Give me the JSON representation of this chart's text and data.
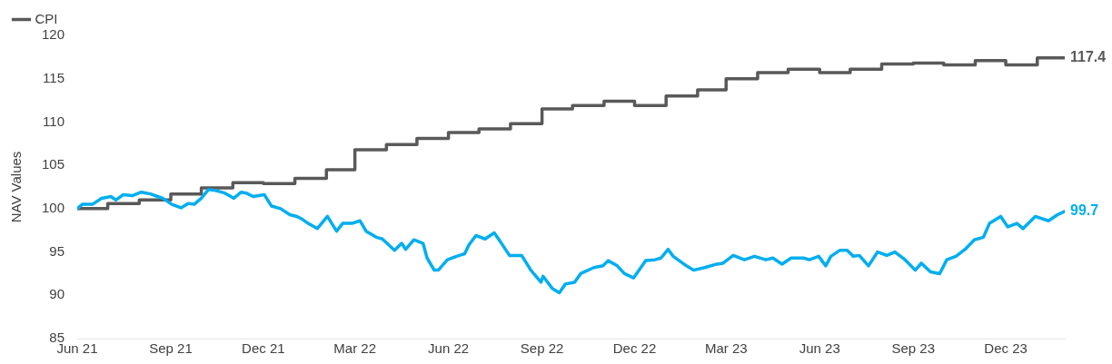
{
  "chart_data": {
    "type": "line",
    "ylabel": "NAV Values",
    "xlim": [
      "2021-06-01",
      "2024-01-28"
    ],
    "xticks": [
      {
        "value": "2021-06-01",
        "label": "Jun 21"
      },
      {
        "value": "2021-09-01",
        "label": "Sep 21"
      },
      {
        "value": "2021-12-01",
        "label": "Dec 21"
      },
      {
        "value": "2022-03-01",
        "label": "Mar 22"
      },
      {
        "value": "2022-06-01",
        "label": "Jun 22"
      },
      {
        "value": "2022-09-01",
        "label": "Sep 22"
      },
      {
        "value": "2022-12-01",
        "label": "Dec 22"
      },
      {
        "value": "2023-03-01",
        "label": "Mar 23"
      },
      {
        "value": "2023-06-01",
        "label": "Jun 23"
      },
      {
        "value": "2023-09-01",
        "label": "Sep 23"
      },
      {
        "value": "2023-12-01",
        "label": "Dec 23"
      }
    ],
    "ylim": [
      85,
      120
    ],
    "yticks": [
      85,
      90,
      95,
      100,
      105,
      110,
      115,
      120
    ],
    "grid": false,
    "legend": "top left",
    "marker": "none",
    "line_style": "solid",
    "series": [
      {
        "color": "#00aeef",
        "x": [
          "2021-06-01",
          "2021-06-06",
          "2021-06-16",
          "2021-06-25",
          "2021-07-04",
          "2021-07-09",
          "2021-07-16",
          "2021-07-25",
          "2021-08-03",
          "2021-08-12",
          "2021-08-19",
          "2021-08-24",
          "2021-09-02",
          "2021-09-11",
          "2021-09-18",
          "2021-09-24",
          "2021-10-01",
          "2021-10-08",
          "2021-10-15",
          "2021-10-24",
          "2021-11-02",
          "2021-11-09",
          "2021-11-14",
          "2021-11-21",
          "2021-12-02",
          "2021-12-09",
          "2021-12-18",
          "2021-12-27",
          "2022-01-03",
          "2022-01-08",
          "2022-01-14",
          "2022-01-23",
          "2022-02-02",
          "2022-02-11",
          "2022-02-17",
          "2022-02-26",
          "2022-03-06",
          "2022-03-12",
          "2022-03-22",
          "2022-03-28",
          "2022-04-09",
          "2022-04-16",
          "2022-04-20",
          "2022-04-28",
          "2022-05-07",
          "2022-05-11",
          "2022-05-18",
          "2022-05-22",
          "2022-05-31",
          "2022-06-09",
          "2022-06-17",
          "2022-06-21",
          "2022-06-28",
          "2022-07-07",
          "2022-07-16",
          "2022-07-22",
          "2022-07-31",
          "2022-08-12",
          "2022-08-21",
          "2022-08-31",
          "2022-09-02",
          "2022-09-11",
          "2022-09-18",
          "2022-09-24",
          "2022-10-03",
          "2022-10-09",
          "2022-10-22",
          "2022-10-31",
          "2022-11-05",
          "2022-11-14",
          "2022-11-21",
          "2022-11-30",
          "2022-12-12",
          "2022-12-21",
          "2022-12-27",
          "2023-01-03",
          "2023-01-08",
          "2023-01-21",
          "2023-01-28",
          "2023-02-08",
          "2023-02-20",
          "2023-02-26",
          "2023-03-08",
          "2023-03-19",
          "2023-03-29",
          "2023-04-09",
          "2023-04-16",
          "2023-04-25",
          "2023-05-04",
          "2023-05-16",
          "2023-05-22",
          "2023-05-31",
          "2023-06-07",
          "2023-06-12",
          "2023-06-21",
          "2023-06-28",
          "2023-07-04",
          "2023-07-10",
          "2023-07-19",
          "2023-07-28",
          "2023-08-06",
          "2023-08-14",
          "2023-08-24",
          "2023-09-03",
          "2023-09-09",
          "2023-09-18",
          "2023-09-27",
          "2023-10-04",
          "2023-10-13",
          "2023-10-22",
          "2023-10-31",
          "2023-11-09",
          "2023-11-15",
          "2023-11-26",
          "2023-12-03",
          "2023-12-12",
          "2023-12-18",
          "2023-12-30",
          "2024-01-12",
          "2024-01-21",
          "2024-01-28"
        ],
        "values": [
          100.0,
          100.5,
          100.5,
          101.2,
          101.4,
          101.0,
          101.6,
          101.5,
          101.9,
          101.7,
          101.4,
          101.2,
          100.5,
          100.1,
          100.6,
          100.5,
          101.2,
          102.2,
          102.1,
          101.8,
          101.2,
          101.9,
          101.8,
          101.4,
          101.6,
          100.3,
          100.0,
          99.3,
          99.1,
          98.8,
          98.3,
          97.7,
          99.1,
          97.4,
          98.3,
          98.3,
          98.6,
          97.4,
          96.7,
          96.5,
          95.2,
          96.0,
          95.3,
          96.4,
          96.0,
          94.3,
          92.9,
          92.9,
          94.1,
          94.5,
          94.8,
          95.8,
          96.9,
          96.5,
          97.2,
          96.2,
          94.6,
          94.6,
          92.9,
          91.5,
          92.2,
          90.8,
          90.3,
          91.3,
          91.5,
          92.5,
          93.2,
          93.4,
          94.0,
          93.4,
          92.5,
          92.0,
          94.0,
          94.1,
          94.3,
          95.3,
          94.5,
          93.4,
          92.9,
          93.2,
          93.6,
          93.7,
          94.6,
          94.1,
          94.5,
          94.1,
          94.3,
          93.6,
          94.3,
          94.3,
          94.1,
          94.5,
          93.4,
          94.5,
          95.2,
          95.2,
          94.5,
          94.6,
          93.4,
          95.0,
          94.6,
          95.0,
          94.1,
          92.9,
          93.7,
          92.7,
          92.5,
          94.1,
          94.5,
          95.3,
          96.4,
          96.7,
          98.3,
          99.1,
          97.9,
          98.3,
          97.7,
          99.1,
          98.6,
          99.3,
          99.7
        ]
      },
      {
        "name": "CPI",
        "type": "step",
        "color": "#595959",
        "x": [
          "2021-06-01",
          "2021-07-01",
          "2021-08-01",
          "2021-09-01",
          "2021-10-01",
          "2021-11-01",
          "2021-12-01",
          "2022-01-01",
          "2022-02-01",
          "2022-03-01",
          "2022-04-01",
          "2022-05-01",
          "2022-06-01",
          "2022-07-01",
          "2022-08-01",
          "2022-09-01",
          "2022-10-01",
          "2022-11-01",
          "2022-12-01",
          "2023-01-01",
          "2023-02-01",
          "2023-03-01",
          "2023-04-01",
          "2023-05-01",
          "2023-06-01",
          "2023-07-01",
          "2023-08-01",
          "2023-09-01",
          "2023-10-01",
          "2023-11-01",
          "2023-12-01",
          "2024-01-01",
          "2024-01-28"
        ],
        "values": [
          100.0,
          100.0,
          100.6,
          101.0,
          101.7,
          102.4,
          103.0,
          102.9,
          103.5,
          104.5,
          106.8,
          107.4,
          108.1,
          108.8,
          109.2,
          109.8,
          111.5,
          111.9,
          112.4,
          111.9,
          113.0,
          113.7,
          115.0,
          115.7,
          116.1,
          115.7,
          116.1,
          116.7,
          116.8,
          116.6,
          117.1,
          116.6,
          117.4
        ]
      }
    ],
    "annotations": [
      {
        "text": "117.4",
        "x": "2024-01-28",
        "y": 117.4
      },
      {
        "text": "99.7",
        "x": "2024-01-28",
        "y": 99.7
      }
    ]
  }
}
